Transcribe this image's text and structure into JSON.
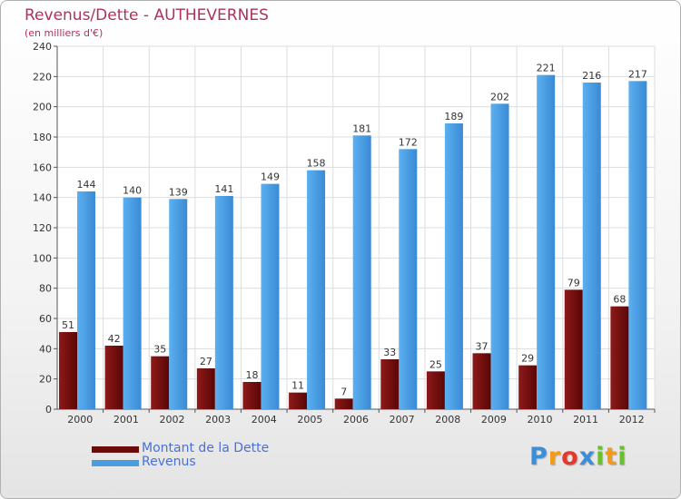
{
  "header": {
    "title": "Revenus/Dette - AUTHEVERNES",
    "subtitle": "(en milliers d'€)"
  },
  "chart_data": {
    "type": "bar",
    "categories": [
      "2000",
      "2001",
      "2002",
      "2003",
      "2004",
      "2005",
      "2006",
      "2007",
      "2008",
      "2009",
      "2010",
      "2011",
      "2012"
    ],
    "series": [
      {
        "name": "Montant de la Dette",
        "color": "#6b0a0a",
        "values": [
          51,
          42,
          35,
          27,
          18,
          11,
          7,
          33,
          25,
          37,
          29,
          79,
          68
        ]
      },
      {
        "name": "Revenus",
        "color": "#4a9de0",
        "values": [
          144,
          140,
          139,
          141,
          149,
          158,
          181,
          172,
          189,
          202,
          221,
          216,
          217
        ]
      }
    ],
    "ylim": [
      0,
      240
    ],
    "yticks": [
      0,
      20,
      40,
      60,
      80,
      100,
      120,
      140,
      160,
      180,
      200,
      220,
      240
    ],
    "grid": true,
    "legend": "bottom-left"
  },
  "legend": {
    "items": [
      {
        "label": "Montant de la Dette",
        "color": "#6b0a0a"
      },
      {
        "label": "Revenus",
        "color": "#4a9de0"
      }
    ]
  },
  "logo": {
    "letters": [
      {
        "char": "P",
        "color": "#3b8fd8"
      },
      {
        "char": "r",
        "color": "#f29a1a"
      },
      {
        "char": "o",
        "color": "#e2392b"
      },
      {
        "char": "x",
        "color": "#3b8fd8"
      },
      {
        "char": "i",
        "color": "#6abf2c"
      },
      {
        "char": "t",
        "color": "#f29a1a"
      },
      {
        "char": "i",
        "color": "#6abf2c"
      }
    ]
  }
}
